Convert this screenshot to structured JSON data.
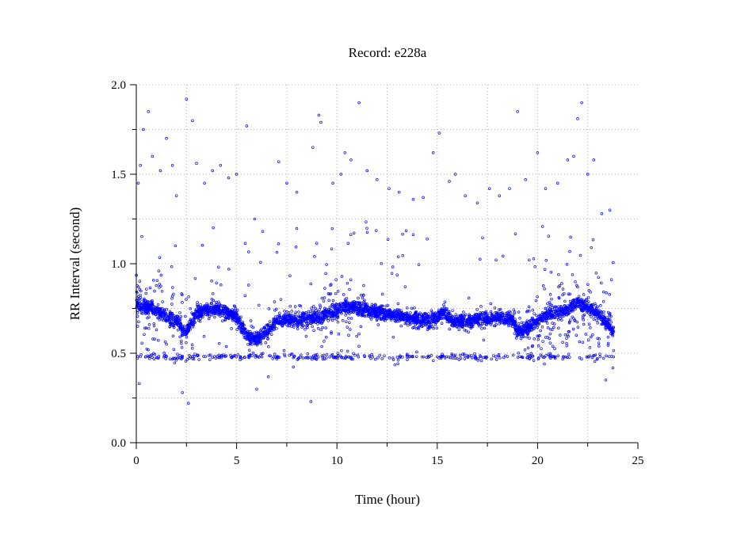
{
  "chart_data": {
    "type": "scatter",
    "title": "Record:  e228a",
    "xlabel": "Time (hour)",
    "ylabel": "RR Interval (second)",
    "xlim": [
      0,
      25
    ],
    "ylim": [
      0.0,
      2.0
    ],
    "xticks": [
      "0",
      "5",
      "10",
      "15",
      "20",
      "25"
    ],
    "yticks": [
      "0.0",
      "0.5",
      "1.0",
      "1.5",
      "2.0"
    ],
    "grid": true,
    "point_color": "#0000ff",
    "series": [
      {
        "trend": [
          [
            0.0,
            0.78
          ],
          [
            0.5,
            0.76
          ],
          [
            1.0,
            0.74
          ],
          [
            1.5,
            0.7
          ],
          [
            2.0,
            0.68
          ],
          [
            2.5,
            0.62
          ],
          [
            3.0,
            0.72
          ],
          [
            3.5,
            0.74
          ],
          [
            4.0,
            0.75
          ],
          [
            4.5,
            0.73
          ],
          [
            5.0,
            0.7
          ],
          [
            5.5,
            0.6
          ],
          [
            6.0,
            0.58
          ],
          [
            6.5,
            0.62
          ],
          [
            7.0,
            0.68
          ],
          [
            8.0,
            0.69
          ],
          [
            9.0,
            0.7
          ],
          [
            10.0,
            0.74
          ],
          [
            10.5,
            0.76
          ],
          [
            11.0,
            0.75
          ],
          [
            12.0,
            0.73
          ],
          [
            13.0,
            0.71
          ],
          [
            14.0,
            0.69
          ],
          [
            14.5,
            0.68
          ],
          [
            15.0,
            0.7
          ],
          [
            15.3,
            0.73
          ],
          [
            15.8,
            0.68
          ],
          [
            16.5,
            0.68
          ],
          [
            17.0,
            0.69
          ],
          [
            18.0,
            0.7
          ],
          [
            18.8,
            0.69
          ],
          [
            19.0,
            0.62
          ],
          [
            19.5,
            0.64
          ],
          [
            20.0,
            0.68
          ],
          [
            20.5,
            0.72
          ],
          [
            21.0,
            0.73
          ],
          [
            21.5,
            0.74
          ],
          [
            22.0,
            0.78
          ],
          [
            22.5,
            0.76
          ],
          [
            23.0,
            0.72
          ],
          [
            23.5,
            0.66
          ],
          [
            23.8,
            0.62
          ]
        ],
        "outliers": [
          [
            0.1,
            1.45
          ],
          [
            0.2,
            1.55
          ],
          [
            0.35,
            1.75
          ],
          [
            0.6,
            1.85
          ],
          [
            0.8,
            1.6
          ],
          [
            1.2,
            1.52
          ],
          [
            1.5,
            1.7
          ],
          [
            1.8,
            1.55
          ],
          [
            2.0,
            1.38
          ],
          [
            2.5,
            1.92
          ],
          [
            2.8,
            1.8
          ],
          [
            3.0,
            1.56
          ],
          [
            3.4,
            1.45
          ],
          [
            3.8,
            1.52
          ],
          [
            4.2,
            1.55
          ],
          [
            4.6,
            1.48
          ],
          [
            5.0,
            1.5
          ],
          [
            5.5,
            1.77
          ],
          [
            5.9,
            1.25
          ],
          [
            6.3,
            1.18
          ],
          [
            7.1,
            1.57
          ],
          [
            7.5,
            1.45
          ],
          [
            8.0,
            1.4
          ],
          [
            8.8,
            1.65
          ],
          [
            9.1,
            1.83
          ],
          [
            9.2,
            1.79
          ],
          [
            9.8,
            1.45
          ],
          [
            10.2,
            1.5
          ],
          [
            10.4,
            1.62
          ],
          [
            10.7,
            1.58
          ],
          [
            11.1,
            1.9
          ],
          [
            11.5,
            1.52
          ],
          [
            12.0,
            1.47
          ],
          [
            12.6,
            1.42
          ],
          [
            13.1,
            1.4
          ],
          [
            13.8,
            1.36
          ],
          [
            14.3,
            1.37
          ],
          [
            14.8,
            1.62
          ],
          [
            15.1,
            1.73
          ],
          [
            15.6,
            1.46
          ],
          [
            15.9,
            1.5
          ],
          [
            16.4,
            1.38
          ],
          [
            17.0,
            1.34
          ],
          [
            17.6,
            1.42
          ],
          [
            18.1,
            1.38
          ],
          [
            18.6,
            1.42
          ],
          [
            19.0,
            1.85
          ],
          [
            19.4,
            1.47
          ],
          [
            20.0,
            1.62
          ],
          [
            20.4,
            1.42
          ],
          [
            21.0,
            1.45
          ],
          [
            21.5,
            1.58
          ],
          [
            21.8,
            1.6
          ],
          [
            22.0,
            1.81
          ],
          [
            22.2,
            1.9
          ],
          [
            22.5,
            1.5
          ],
          [
            22.8,
            1.58
          ],
          [
            23.2,
            1.28
          ],
          [
            23.6,
            1.3
          ],
          [
            2.6,
            0.22
          ],
          [
            2.3,
            0.28
          ],
          [
            0.15,
            0.33
          ],
          [
            8.7,
            0.23
          ],
          [
            6.0,
            0.3
          ],
          [
            23.4,
            0.35
          ]
        ]
      }
    ]
  }
}
